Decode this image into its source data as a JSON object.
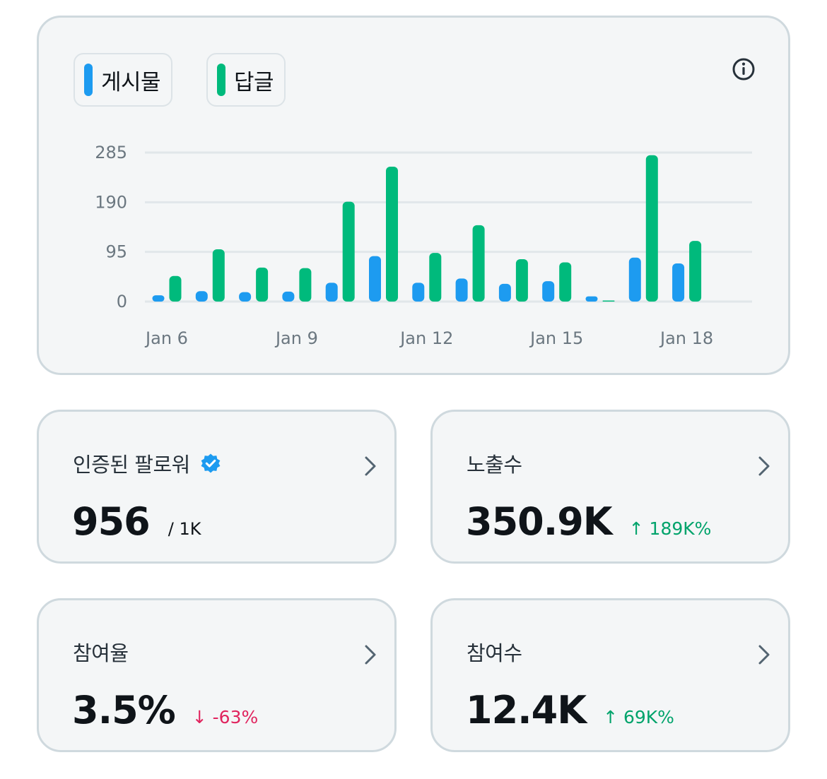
{
  "chart_card": {
    "legend": [
      {
        "label": "게시물",
        "color": "#1d9bf0"
      },
      {
        "label": "답글",
        "color": "#00ba7c"
      }
    ],
    "info_icon": "info-icon"
  },
  "chart_data": {
    "type": "bar",
    "categories": [
      "Jan 6",
      "Jan 7",
      "Jan 8",
      "Jan 9",
      "Jan 10",
      "Jan 11",
      "Jan 12",
      "Jan 13",
      "Jan 14",
      "Jan 15",
      "Jan 16",
      "Jan 17",
      "Jan 18"
    ],
    "x_tick_labels": [
      {
        "category": "Jan 6",
        "label": "Jan 6"
      },
      {
        "category": "Jan 9",
        "label": "Jan 9"
      },
      {
        "category": "Jan 12",
        "label": "Jan 12"
      },
      {
        "category": "Jan 15",
        "label": "Jan 15"
      },
      {
        "category": "Jan 18",
        "label": "Jan 18"
      }
    ],
    "series": [
      {
        "name": "게시물",
        "color": "#1d9bf0",
        "values": [
          12,
          20,
          18,
          19,
          36,
          87,
          36,
          44,
          34,
          39,
          10,
          84,
          73
        ]
      },
      {
        "name": "답글",
        "color": "#00ba7c",
        "values": [
          49,
          100,
          65,
          64,
          191,
          258,
          93,
          146,
          81,
          75,
          2,
          280,
          116
        ]
      }
    ],
    "yticks": [
      0,
      95,
      190,
      285
    ],
    "ylim": [
      0,
      285
    ],
    "grid": true,
    "legend": "top-left"
  },
  "stats": [
    {
      "title": "인증된 팔로워",
      "value": "956",
      "sub": "/ 1K",
      "verified": true
    },
    {
      "title": "노출수",
      "value": "350.9K",
      "delta": "↑ 189K%",
      "direction": "up"
    },
    {
      "title": "참여율",
      "value": "3.5%",
      "delta": "↓ -63%",
      "direction": "down"
    },
    {
      "title": "참여수",
      "value": "12.4K",
      "delta": "↑ 69K%",
      "direction": "up"
    }
  ],
  "colors": {
    "up": "#00a36b",
    "down": "#e0245e",
    "post": "#1d9bf0",
    "reply": "#00ba7c"
  }
}
